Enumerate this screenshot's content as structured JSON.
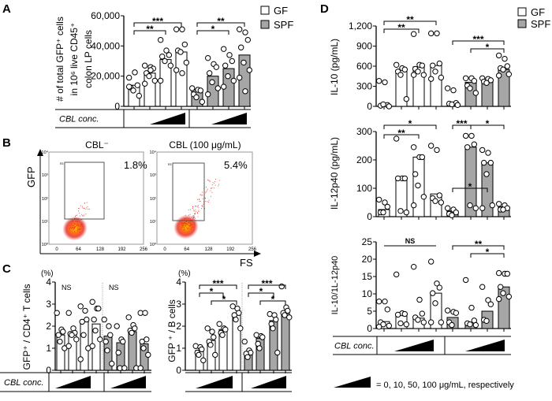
{
  "panel_labels": {
    "A": "A",
    "B": "B",
    "C": "C",
    "D": "D"
  },
  "colors": {
    "GF": "#ffffff",
    "SPF": "#a6a6a6",
    "axis": "#000000",
    "gate": "#555555",
    "flow_low": "#e0201a",
    "flow_high": "#ffb400"
  },
  "legend": {
    "GF": "GF",
    "SPF": "SPF"
  },
  "cbl_label": "CBL conc.",
  "dose_legend": "= 0, 10, 50, 100 μg/mL, respectively",
  "flow": {
    "y_label": "GFP",
    "x_label": "FS",
    "x_ticks": [
      "0",
      "64",
      "128",
      "192",
      "256"
    ],
    "y_ticks": [
      "10⁰",
      "10¹",
      "10²",
      "10³",
      "10⁴"
    ],
    "gate_name": "R3",
    "plots": [
      {
        "title": "CBL⁻",
        "percent": "1.8%"
      },
      {
        "title": "CBL (100 μg/mL)",
        "percent": "5.4%"
      }
    ]
  },
  "chart_data": [
    {
      "id": "A",
      "type": "bar",
      "ylabel": [
        "# of total GFP⁺ cells",
        "in 10⁶ live CD45⁺",
        "colon LP cells"
      ],
      "ylim": [
        0,
        60000
      ],
      "yticks": [
        0,
        20000,
        40000,
        60000
      ],
      "ytick_labels": [
        "0",
        "20,000",
        "40,000",
        "60,000"
      ],
      "categories": [
        "0",
        "10",
        "50",
        "100"
      ],
      "series": [
        {
          "name": "GF",
          "values": [
            14000,
            22000,
            31000,
            36000
          ],
          "points": [
            [
              19000,
              22500,
              14000,
              12500,
              10500,
              7000,
              13000
            ],
            [
              27000,
              26000,
              25000,
              22000,
              20000,
              17000,
              15000,
              24000
            ],
            [
              44000,
              37000,
              34000,
              33000,
              30000,
              27000,
              17000
            ],
            [
              51000,
              51000,
              41000,
              37000,
              36000,
              29000,
              24000,
              22000
            ]
          ]
        },
        {
          "name": "SPF",
          "values": [
            11000,
            20000,
            25000,
            34000
          ],
          "points": [
            [
              12000,
              11000,
              10500,
              8000,
              6000,
              3000
            ],
            [
              32000,
              28000,
              26000,
              22000,
              16000,
              12000,
              8000
            ],
            [
              38000,
              34000,
              30000,
              27000,
              20000,
              17000,
              13000
            ],
            [
              51000,
              49000,
              44000,
              39000,
              29000,
              24000,
              19000,
              10000
            ]
          ]
        }
      ],
      "significance": [
        {
          "series": "GF",
          "from": 0,
          "to": 3,
          "label": "***"
        },
        {
          "series": "GF",
          "from": 0,
          "to": 2,
          "label": "**"
        },
        {
          "series": "SPF",
          "from": 0,
          "to": 3,
          "label": "**"
        },
        {
          "series": "SPF",
          "from": 0,
          "to": 2,
          "label": "*"
        }
      ]
    },
    {
      "id": "C-left",
      "type": "bar",
      "ylabel": [
        "GFP⁺ / CD4⁺ T cells"
      ],
      "unit": "(%)",
      "ylim": [
        0,
        4
      ],
      "yticks": [
        0,
        1,
        2,
        3,
        4
      ],
      "ytick_labels": [
        "0",
        "1",
        "2",
        "3",
        "4"
      ],
      "categories": [
        "0",
        "10",
        "50",
        "100"
      ],
      "series": [
        {
          "name": "GF",
          "values": [
            1.6,
            1.6,
            2.25,
            2.1
          ],
          "points": [
            [
              2.6,
              1.85,
              1.75,
              1.6,
              1.3,
              1.0
            ],
            [
              2.6,
              1.9,
              1.7,
              1.65,
              1.6,
              1.4,
              1.1
            ],
            [
              2.9,
              2.7,
              2.3,
              2.2,
              1.6,
              1.0,
              0.5
            ],
            [
              3.1,
              2.8,
              2.8,
              2.3,
              1.8,
              1.4,
              1.1
            ]
          ]
        },
        {
          "name": "SPF",
          "values": [
            1.55,
            1.25,
            1.75,
            1.2
          ],
          "points": [
            [
              2.3,
              2.0,
              1.6,
              1.3,
              0.9,
              0.3
            ],
            [
              2.0,
              1.4,
              1.3,
              0.8,
              0.1,
              0.1
            ],
            [
              2.4,
              2.05,
              1.9,
              1.8,
              1.7,
              0.1
            ],
            [
              2.6,
              2.6,
              1.4,
              1.3,
              1.0,
              0.7,
              0.1
            ]
          ]
        }
      ],
      "significance": [
        {
          "series": "GF",
          "label": "NS"
        },
        {
          "series": "SPF",
          "label": "NS"
        }
      ]
    },
    {
      "id": "C-right",
      "type": "bar",
      "ylabel": [
        "GFP ⁺ / B cells"
      ],
      "unit": "(%)",
      "ylim": [
        0,
        4
      ],
      "yticks": [
        0,
        1,
        2,
        3,
        4
      ],
      "ytick_labels": [
        "0",
        "1",
        "2",
        "3",
        "4"
      ],
      "categories": [
        "0",
        "10",
        "50",
        "100"
      ],
      "series": [
        {
          "name": "GF",
          "values": [
            0.9,
            1.35,
            1.85,
            2.55
          ],
          "points": [
            [
              1.1,
              1.05,
              0.95,
              0.8,
              0.7,
              0.45
            ],
            [
              1.9,
              1.75,
              1.5,
              1.3,
              1.15,
              0.7
            ],
            [
              2.1,
              1.9,
              1.85,
              1.7,
              1.6
            ],
            [
              2.9,
              2.8,
              2.6,
              2.5,
              2.3,
              1.9
            ]
          ]
        },
        {
          "name": "SPF",
          "values": [
            0.8,
            1.45,
            2.25,
            2.6
          ],
          "points": [
            [
              1.3,
              0.9,
              0.8,
              0.75,
              0.6
            ],
            [
              1.6,
              1.55,
              1.5,
              1.2,
              1.0
            ],
            [
              2.55,
              2.5,
              2.3,
              2.1,
              1.9,
              0.8
            ],
            [
              3.8,
              2.85,
              2.7,
              2.6,
              2.5,
              2.4
            ]
          ]
        }
      ],
      "significance": [
        {
          "series": "GF",
          "from": 0,
          "to": 3,
          "label": "***"
        },
        {
          "series": "GF",
          "from": 0,
          "to": 2,
          "label": "*"
        },
        {
          "series": "GF",
          "from": 1,
          "to": 3,
          "label": "*"
        },
        {
          "series": "SPF",
          "from": 0,
          "to": 3,
          "label": "***"
        },
        {
          "series": "SPF",
          "from": 0,
          "to": 2,
          "label": "*"
        },
        {
          "series": "SPF",
          "from": 1,
          "to": 3,
          "label": "*"
        }
      ]
    },
    {
      "id": "D-IL10",
      "type": "bar",
      "ylabel": [
        "IL-10 (pg/mL)"
      ],
      "ylim": [
        0,
        1200
      ],
      "yticks": [
        0,
        300,
        600,
        900,
        1200
      ],
      "ytick_labels": [
        "0",
        "300",
        "600",
        "900",
        "1,200"
      ],
      "categories": [
        "0",
        "10",
        "50",
        "100"
      ],
      "series": [
        {
          "name": "GF",
          "values": [
            0,
            540,
            590,
            610
          ],
          "points": [
            [
              380,
              360,
              20,
              10,
              30,
              0
            ],
            [
              620,
              570,
              550,
              520,
              470,
              110
            ],
            [
              1080,
              620,
              610,
              560,
              520,
              470,
              470
            ],
            [
              1090,
              1090,
              640,
              610,
              520,
              430,
              410
            ]
          ]
        },
        {
          "name": "SPF",
          "values": [
            50,
            360,
            390,
            550
          ],
          "points": [
            [
              270,
              240,
              50,
              40,
              30,
              20
            ],
            [
              420,
              420,
              380,
              310,
              270,
              200
            ],
            [
              420,
              410,
              390,
              370,
              350
            ],
            [
              760,
              710,
              600,
              570,
              550,
              480,
              460
            ]
          ]
        }
      ],
      "significance": [
        {
          "series": "GF",
          "from": 0,
          "to": 3,
          "label": "**"
        },
        {
          "series": "GF",
          "from": 0,
          "to": 2,
          "label": "**"
        },
        {
          "series": "SPF",
          "from": 0,
          "to": 3,
          "label": "***"
        },
        {
          "series": "SPF",
          "from": 1,
          "to": 3,
          "label": "*"
        }
      ]
    },
    {
      "id": "D-IL12p40",
      "type": "bar",
      "ylabel": [
        "IL-12p40 (pg/mL)"
      ],
      "ylim": [
        0,
        300
      ],
      "yticks": [
        0,
        100,
        200,
        300
      ],
      "ytick_labels": [
        "0",
        "100",
        "200",
        "300"
      ],
      "categories": [
        "0",
        "10",
        "50",
        "100"
      ],
      "series": [
        {
          "name": "GF",
          "values": [
            25,
            135,
            210,
            80
          ],
          "points": [
            [
              60,
              50,
              35,
              15,
              15
            ],
            [
              275,
              135,
              135,
              135,
              20,
              15
            ],
            [
              245,
              210,
              210,
              150,
              110,
              70,
              40
            ],
            [
              250,
              235,
              75,
              65,
              55,
              50
            ]
          ]
        },
        {
          "name": "SPF",
          "values": [
            20,
            245,
            190,
            35
          ],
          "points": [
            [
              30,
              25,
              15,
              10,
              5
            ],
            [
              285,
              285,
              255,
              245,
              40,
              30
            ],
            [
              235,
              225,
              190,
              190,
              150,
              40,
              30
            ],
            [
              45,
              40,
              30,
              25,
              25
            ]
          ]
        }
      ],
      "significance": [
        {
          "series": "GF",
          "from": 0,
          "to": 3,
          "label": "*"
        },
        {
          "series": "GF",
          "from": 0,
          "to": 2,
          "label": "**"
        },
        {
          "series": "SPF",
          "from": 0,
          "to": 1,
          "label": "***"
        },
        {
          "series": "SPF",
          "from": 1,
          "to": 3,
          "label": "*"
        },
        {
          "series": "SPF",
          "from": 0,
          "to": 2,
          "label": "*"
        }
      ]
    },
    {
      "id": "D-ratio",
      "type": "bar",
      "ylabel": [
        "IL-10/1L-12p40"
      ],
      "ylim": [
        0,
        25
      ],
      "yticks": [
        0,
        5,
        10,
        15,
        20,
        25
      ],
      "ytick_labels": [
        "0",
        "5",
        "10",
        "15",
        "20",
        "25"
      ],
      "categories": [
        "0",
        "10",
        "50",
        "100"
      ],
      "series": [
        {
          "name": "GF",
          "values": [
            2,
            4.3,
            3,
            10.2
          ],
          "points": [
            [
              7.8,
              7.8,
              5.5,
              1.8,
              1.2,
              0.8,
              0.5
            ],
            [
              15.6,
              4.4,
              4.2,
              4.0,
              1.5,
              1.2
            ],
            [
              17.8,
              8.3,
              4.3,
              3.2,
              2.5,
              1.8
            ],
            [
              19.3,
              13.0,
              11.8,
              10.2,
              7.3,
              1.8,
              1.8
            ]
          ]
        },
        {
          "name": "SPF",
          "values": [
            3.2,
            1.8,
            5,
            12
          ],
          "points": [
            [
              5.2,
              4.8,
              4.5,
              1.8,
              1.0
            ],
            [
              14,
              6,
              2.3,
              1.5,
              1.2,
              1.0
            ],
            [
              12,
              8.2,
              7,
              2.5,
              2.2
            ],
            [
              16,
              15.8,
              15.8,
              12,
              10.2,
              9.2,
              8.5
            ]
          ]
        }
      ],
      "significance": [
        {
          "series": "GF",
          "from": 0,
          "to": 3,
          "label": "NS",
          "style": "line"
        },
        {
          "series": "SPF",
          "from": 0,
          "to": 3,
          "label": "**"
        },
        {
          "series": "SPF",
          "from": 1,
          "to": 3,
          "label": "*"
        }
      ]
    }
  ]
}
